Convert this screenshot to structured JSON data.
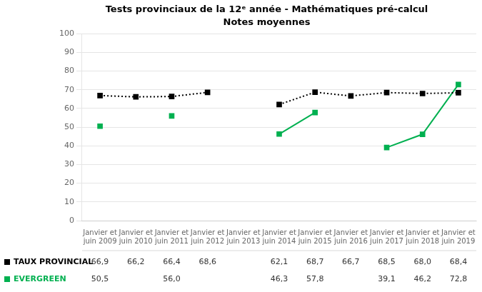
{
  "chart_data": {
    "type": "line",
    "title": "Tests provinciaux de la 12ᵉ année - Mathématiques pré-calcul",
    "subtitle": "Notes moyennes",
    "categories": [
      "Janvier et\njuin 2009",
      "Janvier et\njuin 2010",
      "Janvier et\njuin 2011",
      "Janvier et\njuin 2012",
      "Janvier et\njuin 2013",
      "Janvier et\njuin 2014",
      "Janvier et\njuin 2015",
      "Janvier et\njuin 2016",
      "Janvier et\njuin 2017",
      "Janvier et\njuin 2018",
      "Janvier et\njuin 2019"
    ],
    "series": [
      {
        "name": "TAUX PROVINCIAL",
        "color": "#000000",
        "marker": "square",
        "line_style": "dotted",
        "values": [
          66.9,
          66.2,
          66.4,
          68.6,
          null,
          62.1,
          68.7,
          66.7,
          68.5,
          68.0,
          68.4
        ],
        "value_labels": [
          "66,9",
          "66,2",
          "66,4",
          "68,6",
          null,
          "62,1",
          "68,7",
          "66,7",
          "68,5",
          "68,0",
          "68,4"
        ]
      },
      {
        "name": "EVERGREEN",
        "color": "#00b050",
        "marker": "square",
        "line_style": "solid",
        "values": [
          50.5,
          null,
          56.0,
          null,
          null,
          46.3,
          57.8,
          null,
          39.1,
          46.2,
          72.8
        ],
        "value_labels": [
          "50,5",
          null,
          "56,0",
          null,
          null,
          "46,3",
          "57,8",
          null,
          "39,1",
          "46,2",
          "72,8"
        ]
      }
    ],
    "ylim": [
      0,
      100
    ],
    "yticks": [
      0,
      10,
      20,
      30,
      40,
      50,
      60,
      70,
      80,
      90,
      100
    ],
    "grid": true
  }
}
